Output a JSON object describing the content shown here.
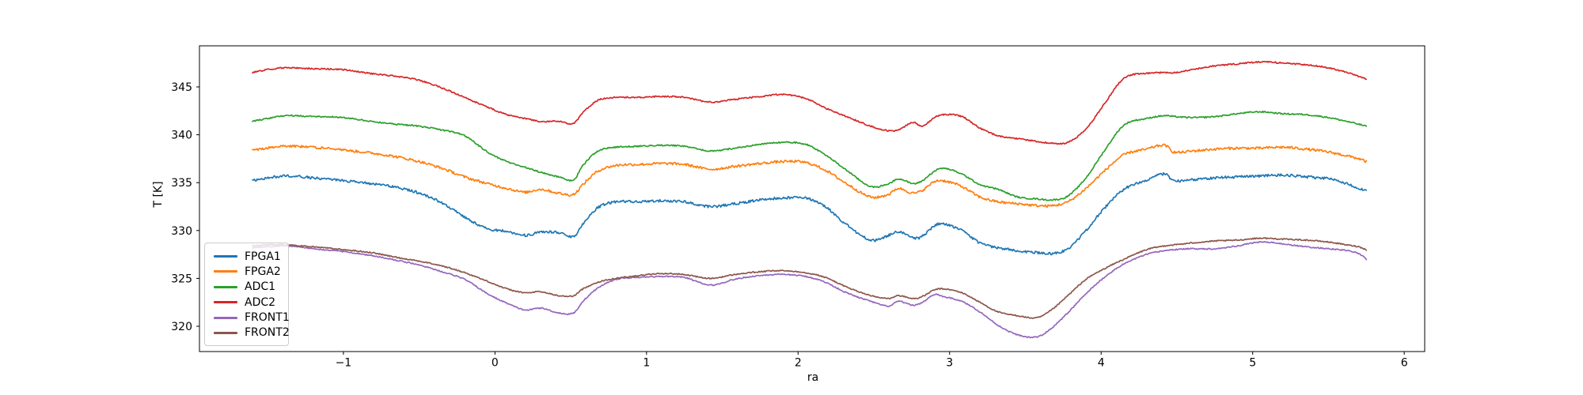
{
  "chart_data": {
    "type": "line",
    "title": "",
    "xlabel": "ra",
    "ylabel": "T [K]",
    "xlim": [
      -1.95,
      6.135
    ],
    "ylim": [
      317.36,
      349.29
    ],
    "grid": false,
    "legend_position": "lower left",
    "x_ticks": [
      -1,
      0,
      1,
      2,
      3,
      4,
      5,
      6
    ],
    "x_tick_labels": [
      "−1",
      "0",
      "1",
      "2",
      "3",
      "4",
      "5",
      "6"
    ],
    "y_ticks": [
      320,
      325,
      330,
      335,
      340,
      345
    ],
    "y_tick_labels": [
      "320",
      "325",
      "330",
      "335",
      "340",
      "345"
    ],
    "x_keys": [
      -1.6,
      -1.5,
      -1.38,
      -1.2,
      -1.0,
      -0.82,
      -0.65,
      -0.5,
      -0.35,
      -0.2,
      -0.05,
      0.08,
      0.2,
      0.3,
      0.42,
      0.52,
      0.58,
      0.68,
      0.8,
      0.95,
      1.1,
      1.25,
      1.42,
      1.58,
      1.75,
      1.9,
      2.05,
      2.18,
      2.32,
      2.48,
      2.6,
      2.66,
      2.76,
      2.82,
      2.9,
      2.96,
      3.08,
      3.2,
      3.32,
      3.45,
      3.58,
      3.68,
      3.78,
      3.9,
      4.02,
      4.15,
      4.3,
      4.42,
      4.48,
      4.6,
      4.75,
      4.9,
      5.05,
      5.2,
      5.35,
      5.5,
      5.62,
      5.7,
      5.75
    ],
    "series": [
      {
        "name": "FPGA1",
        "color": "#1f77b4",
        "noise": 0.13,
        "t_values": [
          335.2,
          335.5,
          335.7,
          335.5,
          335.2,
          334.9,
          334.5,
          333.9,
          332.9,
          331.4,
          330.2,
          329.9,
          329.5,
          329.8,
          329.8,
          329.4,
          330.7,
          332.4,
          333.0,
          333.0,
          333.1,
          333.0,
          332.5,
          332.8,
          333.2,
          333.4,
          333.4,
          332.5,
          330.6,
          329.0,
          329.5,
          329.9,
          329.2,
          329.4,
          330.5,
          330.7,
          330.0,
          328.7,
          328.2,
          327.9,
          327.7,
          327.6,
          328.1,
          330.0,
          332.3,
          334.3,
          335.3,
          335.9,
          335.2,
          335.3,
          335.5,
          335.6,
          335.7,
          335.8,
          335.6,
          335.4,
          334.9,
          334.4,
          334.1
        ]
      },
      {
        "name": "FPGA2",
        "color": "#ff7f0e",
        "noise": 0.13,
        "t_values": [
          338.4,
          338.6,
          338.8,
          338.7,
          338.4,
          338.1,
          337.7,
          337.2,
          336.5,
          335.6,
          334.9,
          334.4,
          334.0,
          334.3,
          333.9,
          333.8,
          334.8,
          336.2,
          336.8,
          336.9,
          337.0,
          336.9,
          336.4,
          336.7,
          337.0,
          337.2,
          337.1,
          336.3,
          334.9,
          333.5,
          333.8,
          334.4,
          333.9,
          334.2,
          335.1,
          335.2,
          334.6,
          333.5,
          333.0,
          332.8,
          332.6,
          332.6,
          333.0,
          334.4,
          336.2,
          337.9,
          338.5,
          338.9,
          338.2,
          338.3,
          338.5,
          338.6,
          338.6,
          338.7,
          338.5,
          338.2,
          337.8,
          337.5,
          337.2
        ]
      },
      {
        "name": "ADC1",
        "color": "#2ca02c",
        "noise": 0.07,
        "t_values": [
          341.4,
          341.7,
          342.0,
          341.9,
          341.8,
          341.4,
          341.1,
          340.9,
          340.5,
          339.9,
          338.2,
          337.2,
          336.6,
          336.1,
          335.6,
          335.3,
          336.8,
          338.3,
          338.7,
          338.8,
          338.9,
          338.8,
          338.3,
          338.6,
          339.0,
          339.2,
          339.0,
          337.9,
          336.3,
          334.6,
          334.9,
          335.4,
          334.9,
          335.2,
          336.2,
          336.5,
          335.9,
          334.8,
          334.3,
          333.5,
          333.3,
          333.2,
          333.6,
          335.5,
          338.3,
          341.0,
          341.7,
          342.0,
          341.9,
          341.8,
          341.9,
          342.2,
          342.4,
          342.2,
          342.1,
          341.8,
          341.4,
          341.1,
          340.9
        ]
      },
      {
        "name": "ADC2",
        "color": "#d62728",
        "noise": 0.07,
        "t_values": [
          346.5,
          346.8,
          347.0,
          346.9,
          346.8,
          346.4,
          346.1,
          345.7,
          344.9,
          343.9,
          342.9,
          342.1,
          341.7,
          341.4,
          341.4,
          341.2,
          342.3,
          343.6,
          343.9,
          343.9,
          344.0,
          343.9,
          343.4,
          343.7,
          344.0,
          344.2,
          343.8,
          342.8,
          341.9,
          340.9,
          340.4,
          340.5,
          341.3,
          340.9,
          341.8,
          342.1,
          341.9,
          340.7,
          339.9,
          339.6,
          339.3,
          339.1,
          339.2,
          340.6,
          343.2,
          345.9,
          346.4,
          346.5,
          346.5,
          346.8,
          347.2,
          347.4,
          347.6,
          347.5,
          347.3,
          347.0,
          346.5,
          346.1,
          345.8
        ]
      },
      {
        "name": "FRONT1",
        "color": "#9467bd",
        "noise": 0.06,
        "t_values": [
          328.2,
          328.3,
          328.4,
          328.1,
          327.8,
          327.4,
          326.9,
          326.4,
          325.7,
          324.9,
          323.4,
          322.4,
          321.7,
          321.9,
          321.4,
          321.4,
          322.6,
          324.0,
          324.9,
          325.1,
          325.2,
          325.1,
          324.3,
          324.9,
          325.3,
          325.4,
          325.2,
          324.6,
          323.5,
          322.6,
          322.1,
          322.6,
          322.2,
          322.5,
          323.3,
          323.1,
          322.6,
          321.5,
          320.1,
          319.1,
          318.9,
          319.9,
          321.4,
          323.4,
          325.1,
          326.5,
          327.5,
          327.9,
          328.0,
          328.1,
          328.1,
          328.4,
          328.8,
          328.6,
          328.3,
          328.1,
          327.9,
          327.6,
          327.0
        ]
      },
      {
        "name": "FRONT2",
        "color": "#8c564b",
        "noise": 0.06,
        "t_values": [
          328.4,
          328.5,
          328.5,
          328.3,
          328.0,
          327.7,
          327.2,
          326.8,
          326.3,
          325.6,
          324.7,
          323.9,
          323.5,
          323.6,
          323.2,
          323.2,
          323.9,
          324.6,
          325.0,
          325.3,
          325.5,
          325.4,
          325.0,
          325.4,
          325.7,
          325.8,
          325.6,
          325.1,
          324.1,
          323.2,
          322.9,
          323.2,
          322.9,
          323.1,
          323.8,
          323.9,
          323.5,
          322.5,
          321.5,
          321.1,
          320.9,
          321.8,
          323.2,
          324.9,
          326.0,
          327.0,
          328.0,
          328.4,
          328.5,
          328.7,
          328.9,
          329.0,
          329.2,
          329.1,
          329.0,
          328.8,
          328.5,
          328.3,
          328.0
        ]
      }
    ]
  }
}
